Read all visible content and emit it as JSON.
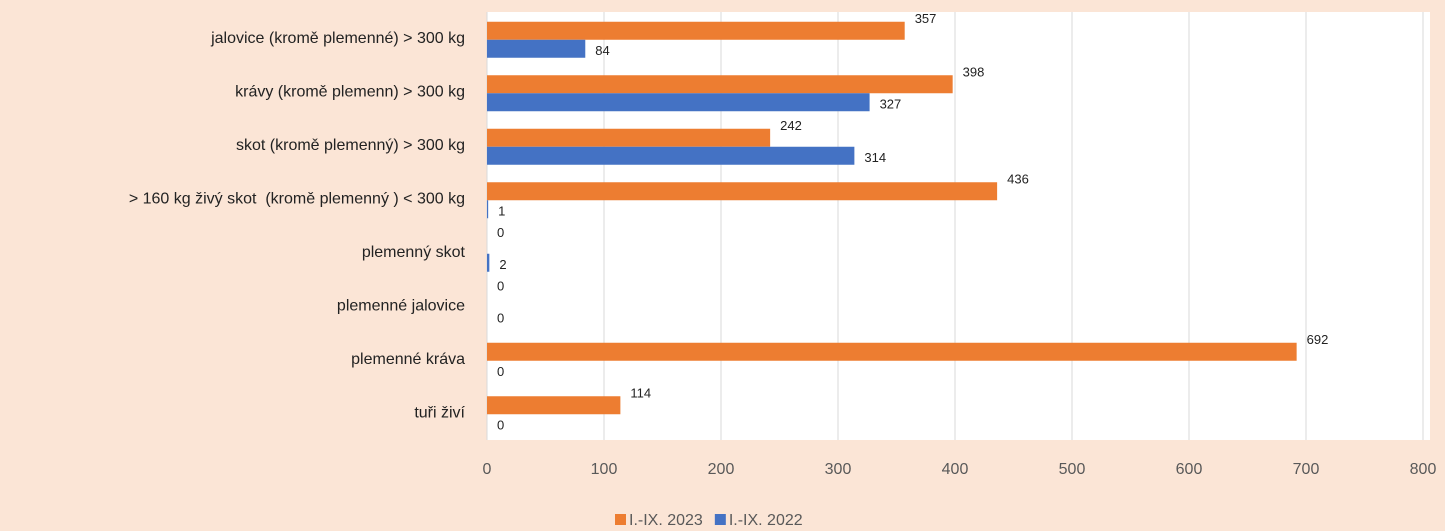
{
  "chart_data": {
    "type": "hbar",
    "categories": [
      "jalovice (kromě plemenné) > 300 kg",
      "krávy (kromě plemenn) > 300 kg",
      "skot (kromě plemenný) > 300 kg",
      "> 160 kg živý skot  (kromě plemenný ) < 300 kg",
      "plemenný skot",
      "plemenné jalovice",
      "plemenné kráva",
      "tuři živí"
    ],
    "series": [
      {
        "name": "I.-IX. 2023",
        "color": "#ED7D31",
        "values": [
          357,
          398,
          242,
          436,
          0,
          0,
          692,
          114
        ]
      },
      {
        "name": "I.-IX. 2022",
        "color": "#4472C4",
        "values": [
          84,
          327,
          314,
          1,
          2,
          0,
          0,
          0
        ]
      }
    ],
    "xlim": [
      0,
      800
    ],
    "xticks": [
      0,
      100,
      200,
      300,
      400,
      500,
      600,
      700,
      800
    ],
    "grid": true,
    "legend": "bottom"
  }
}
